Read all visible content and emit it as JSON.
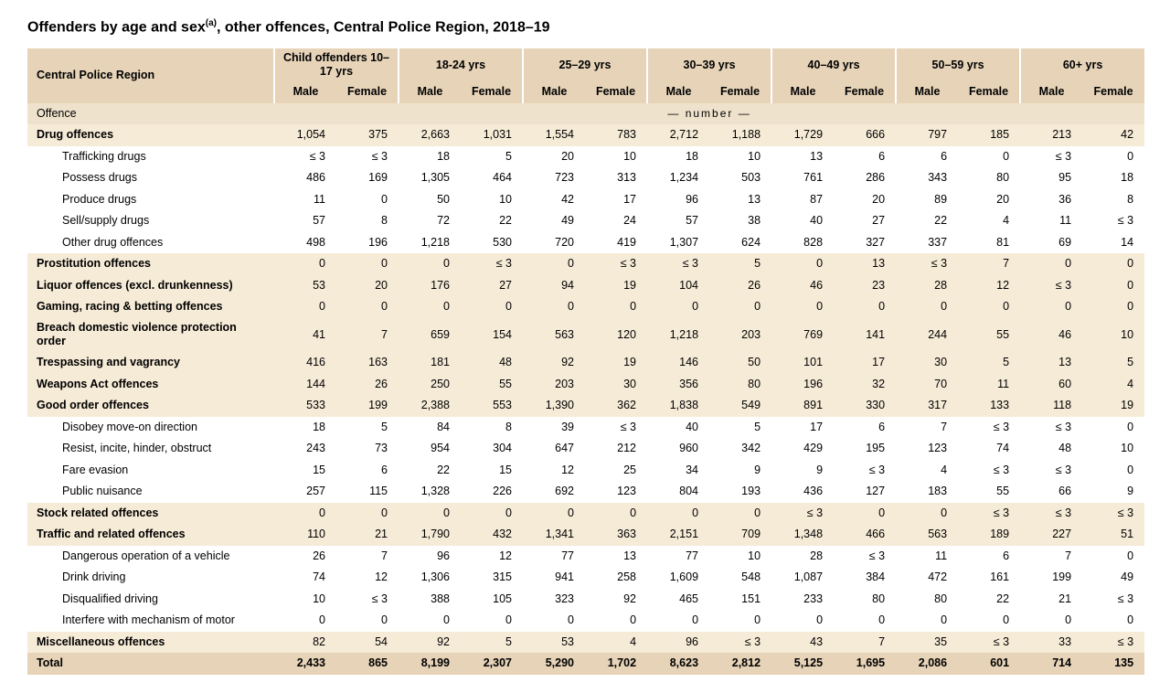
{
  "title_prefix": "Offenders by age and sex",
  "title_super": "(a)",
  "title_suffix": ", other offences, Central Police Region, 2018–19",
  "region_label": "Central Police Region",
  "age_groups": [
    "Child offenders 10–17 yrs",
    "18-24 yrs",
    "25–29 yrs",
    "30–39 yrs",
    "40–49 yrs",
    "50–59 yrs",
    "60+ yrs"
  ],
  "sex_labels": [
    "Male",
    "Female"
  ],
  "offence_header": "Offence",
  "number_label": "—      number      —",
  "colors": {
    "hdr_bg": "#e6d3b8",
    "main_row_bg": "#f6ebd7",
    "sub_row_bg": "#ffffff",
    "offence_bg": "#efe2cc",
    "page_bg": "#ffffff",
    "text": "#000000"
  },
  "typography": {
    "title_fontsize": 16,
    "body_fontsize": 12.5,
    "font_family": "Arial"
  },
  "table_type": "table",
  "rows": [
    {
      "t": "main",
      "label": "Drug offences",
      "v": [
        "1,054",
        "375",
        "2,663",
        "1,031",
        "1,554",
        "783",
        "2,712",
        "1,188",
        "1,729",
        "666",
        "797",
        "185",
        "213",
        "42"
      ]
    },
    {
      "t": "sub",
      "label": "Trafficking drugs",
      "v": [
        "≤ 3",
        "≤ 3",
        "18",
        "5",
        "20",
        "10",
        "18",
        "10",
        "13",
        "6",
        "6",
        "0",
        "≤ 3",
        "0"
      ]
    },
    {
      "t": "sub",
      "label": "Possess drugs",
      "v": [
        "486",
        "169",
        "1,305",
        "464",
        "723",
        "313",
        "1,234",
        "503",
        "761",
        "286",
        "343",
        "80",
        "95",
        "18"
      ]
    },
    {
      "t": "sub",
      "label": "Produce drugs",
      "v": [
        "11",
        "0",
        "50",
        "10",
        "42",
        "17",
        "96",
        "13",
        "87",
        "20",
        "89",
        "20",
        "36",
        "8"
      ]
    },
    {
      "t": "sub",
      "label": "Sell/supply drugs",
      "v": [
        "57",
        "8",
        "72",
        "22",
        "49",
        "24",
        "57",
        "38",
        "40",
        "27",
        "22",
        "4",
        "11",
        "≤ 3"
      ]
    },
    {
      "t": "sub",
      "label": "Other drug offences",
      "v": [
        "498",
        "196",
        "1,218",
        "530",
        "720",
        "419",
        "1,307",
        "624",
        "828",
        "327",
        "337",
        "81",
        "69",
        "14"
      ]
    },
    {
      "t": "main",
      "label": "Prostitution offences",
      "v": [
        "0",
        "0",
        "0",
        "≤ 3",
        "0",
        "≤ 3",
        "≤ 3",
        "5",
        "0",
        "13",
        "≤ 3",
        "7",
        "0",
        "0"
      ]
    },
    {
      "t": "main",
      "label": "Liquor offences (excl. drunkenness)",
      "v": [
        "53",
        "20",
        "176",
        "27",
        "94",
        "19",
        "104",
        "26",
        "46",
        "23",
        "28",
        "12",
        "≤ 3",
        "0"
      ]
    },
    {
      "t": "main",
      "label": "Gaming, racing & betting offences",
      "v": [
        "0",
        "0",
        "0",
        "0",
        "0",
        "0",
        "0",
        "0",
        "0",
        "0",
        "0",
        "0",
        "0",
        "0"
      ]
    },
    {
      "t": "main",
      "label": "Breach domestic violence protection order",
      "wrap": true,
      "v": [
        "41",
        "7",
        "659",
        "154",
        "563",
        "120",
        "1,218",
        "203",
        "769",
        "141",
        "244",
        "55",
        "46",
        "10"
      ]
    },
    {
      "t": "main",
      "label": "Trespassing and vagrancy",
      "v": [
        "416",
        "163",
        "181",
        "48",
        "92",
        "19",
        "146",
        "50",
        "101",
        "17",
        "30",
        "5",
        "13",
        "5"
      ]
    },
    {
      "t": "main",
      "label": "Weapons Act offences",
      "v": [
        "144",
        "26",
        "250",
        "55",
        "203",
        "30",
        "356",
        "80",
        "196",
        "32",
        "70",
        "11",
        "60",
        "4"
      ]
    },
    {
      "t": "main",
      "label": "Good order offences",
      "v": [
        "533",
        "199",
        "2,388",
        "553",
        "1,390",
        "362",
        "1,838",
        "549",
        "891",
        "330",
        "317",
        "133",
        "118",
        "19"
      ]
    },
    {
      "t": "sub",
      "label": "Disobey move-on direction",
      "v": [
        "18",
        "5",
        "84",
        "8",
        "39",
        "≤ 3",
        "40",
        "5",
        "17",
        "6",
        "7",
        "≤ 3",
        "≤ 3",
        "0"
      ]
    },
    {
      "t": "sub",
      "label": "Resist, incite, hinder, obstruct",
      "v": [
        "243",
        "73",
        "954",
        "304",
        "647",
        "212",
        "960",
        "342",
        "429",
        "195",
        "123",
        "74",
        "48",
        "10"
      ]
    },
    {
      "t": "sub",
      "label": "Fare evasion",
      "v": [
        "15",
        "6",
        "22",
        "15",
        "12",
        "25",
        "34",
        "9",
        "9",
        "≤ 3",
        "4",
        "≤ 3",
        "≤ 3",
        "0"
      ]
    },
    {
      "t": "sub",
      "label": "Public nuisance",
      "v": [
        "257",
        "115",
        "1,328",
        "226",
        "692",
        "123",
        "804",
        "193",
        "436",
        "127",
        "183",
        "55",
        "66",
        "9"
      ]
    },
    {
      "t": "main",
      "label": "Stock related offences",
      "v": [
        "0",
        "0",
        "0",
        "0",
        "0",
        "0",
        "0",
        "0",
        "≤ 3",
        "0",
        "0",
        "≤ 3",
        "≤ 3",
        "≤ 3"
      ]
    },
    {
      "t": "main",
      "label": "Traffic and related offences",
      "v": [
        "110",
        "21",
        "1,790",
        "432",
        "1,341",
        "363",
        "2,151",
        "709",
        "1,348",
        "466",
        "563",
        "189",
        "227",
        "51"
      ]
    },
    {
      "t": "sub",
      "label": "Dangerous operation of a vehicle",
      "v": [
        "26",
        "7",
        "96",
        "12",
        "77",
        "13",
        "77",
        "10",
        "28",
        "≤ 3",
        "11",
        "6",
        "7",
        "0"
      ]
    },
    {
      "t": "sub",
      "label": "Drink driving",
      "v": [
        "74",
        "12",
        "1,306",
        "315",
        "941",
        "258",
        "1,609",
        "548",
        "1,087",
        "384",
        "472",
        "161",
        "199",
        "49"
      ]
    },
    {
      "t": "sub",
      "label": "Disqualified driving",
      "v": [
        "10",
        "≤ 3",
        "388",
        "105",
        "323",
        "92",
        "465",
        "151",
        "233",
        "80",
        "80",
        "22",
        "21",
        "≤ 3"
      ]
    },
    {
      "t": "sub",
      "label": "Interfere with mechanism of motor",
      "v": [
        "0",
        "0",
        "0",
        "0",
        "0",
        "0",
        "0",
        "0",
        "0",
        "0",
        "0",
        "0",
        "0",
        "0"
      ]
    },
    {
      "t": "main",
      "label": "Miscellaneous offences",
      "v": [
        "82",
        "54",
        "92",
        "5",
        "53",
        "4",
        "96",
        "≤ 3",
        "43",
        "7",
        "35",
        "≤ 3",
        "33",
        "≤ 3"
      ]
    },
    {
      "t": "total",
      "label": "Total",
      "v": [
        "2,433",
        "865",
        "8,199",
        "2,307",
        "5,290",
        "1,702",
        "8,623",
        "2,812",
        "5,125",
        "1,695",
        "2,086",
        "601",
        "714",
        "135"
      ]
    }
  ]
}
